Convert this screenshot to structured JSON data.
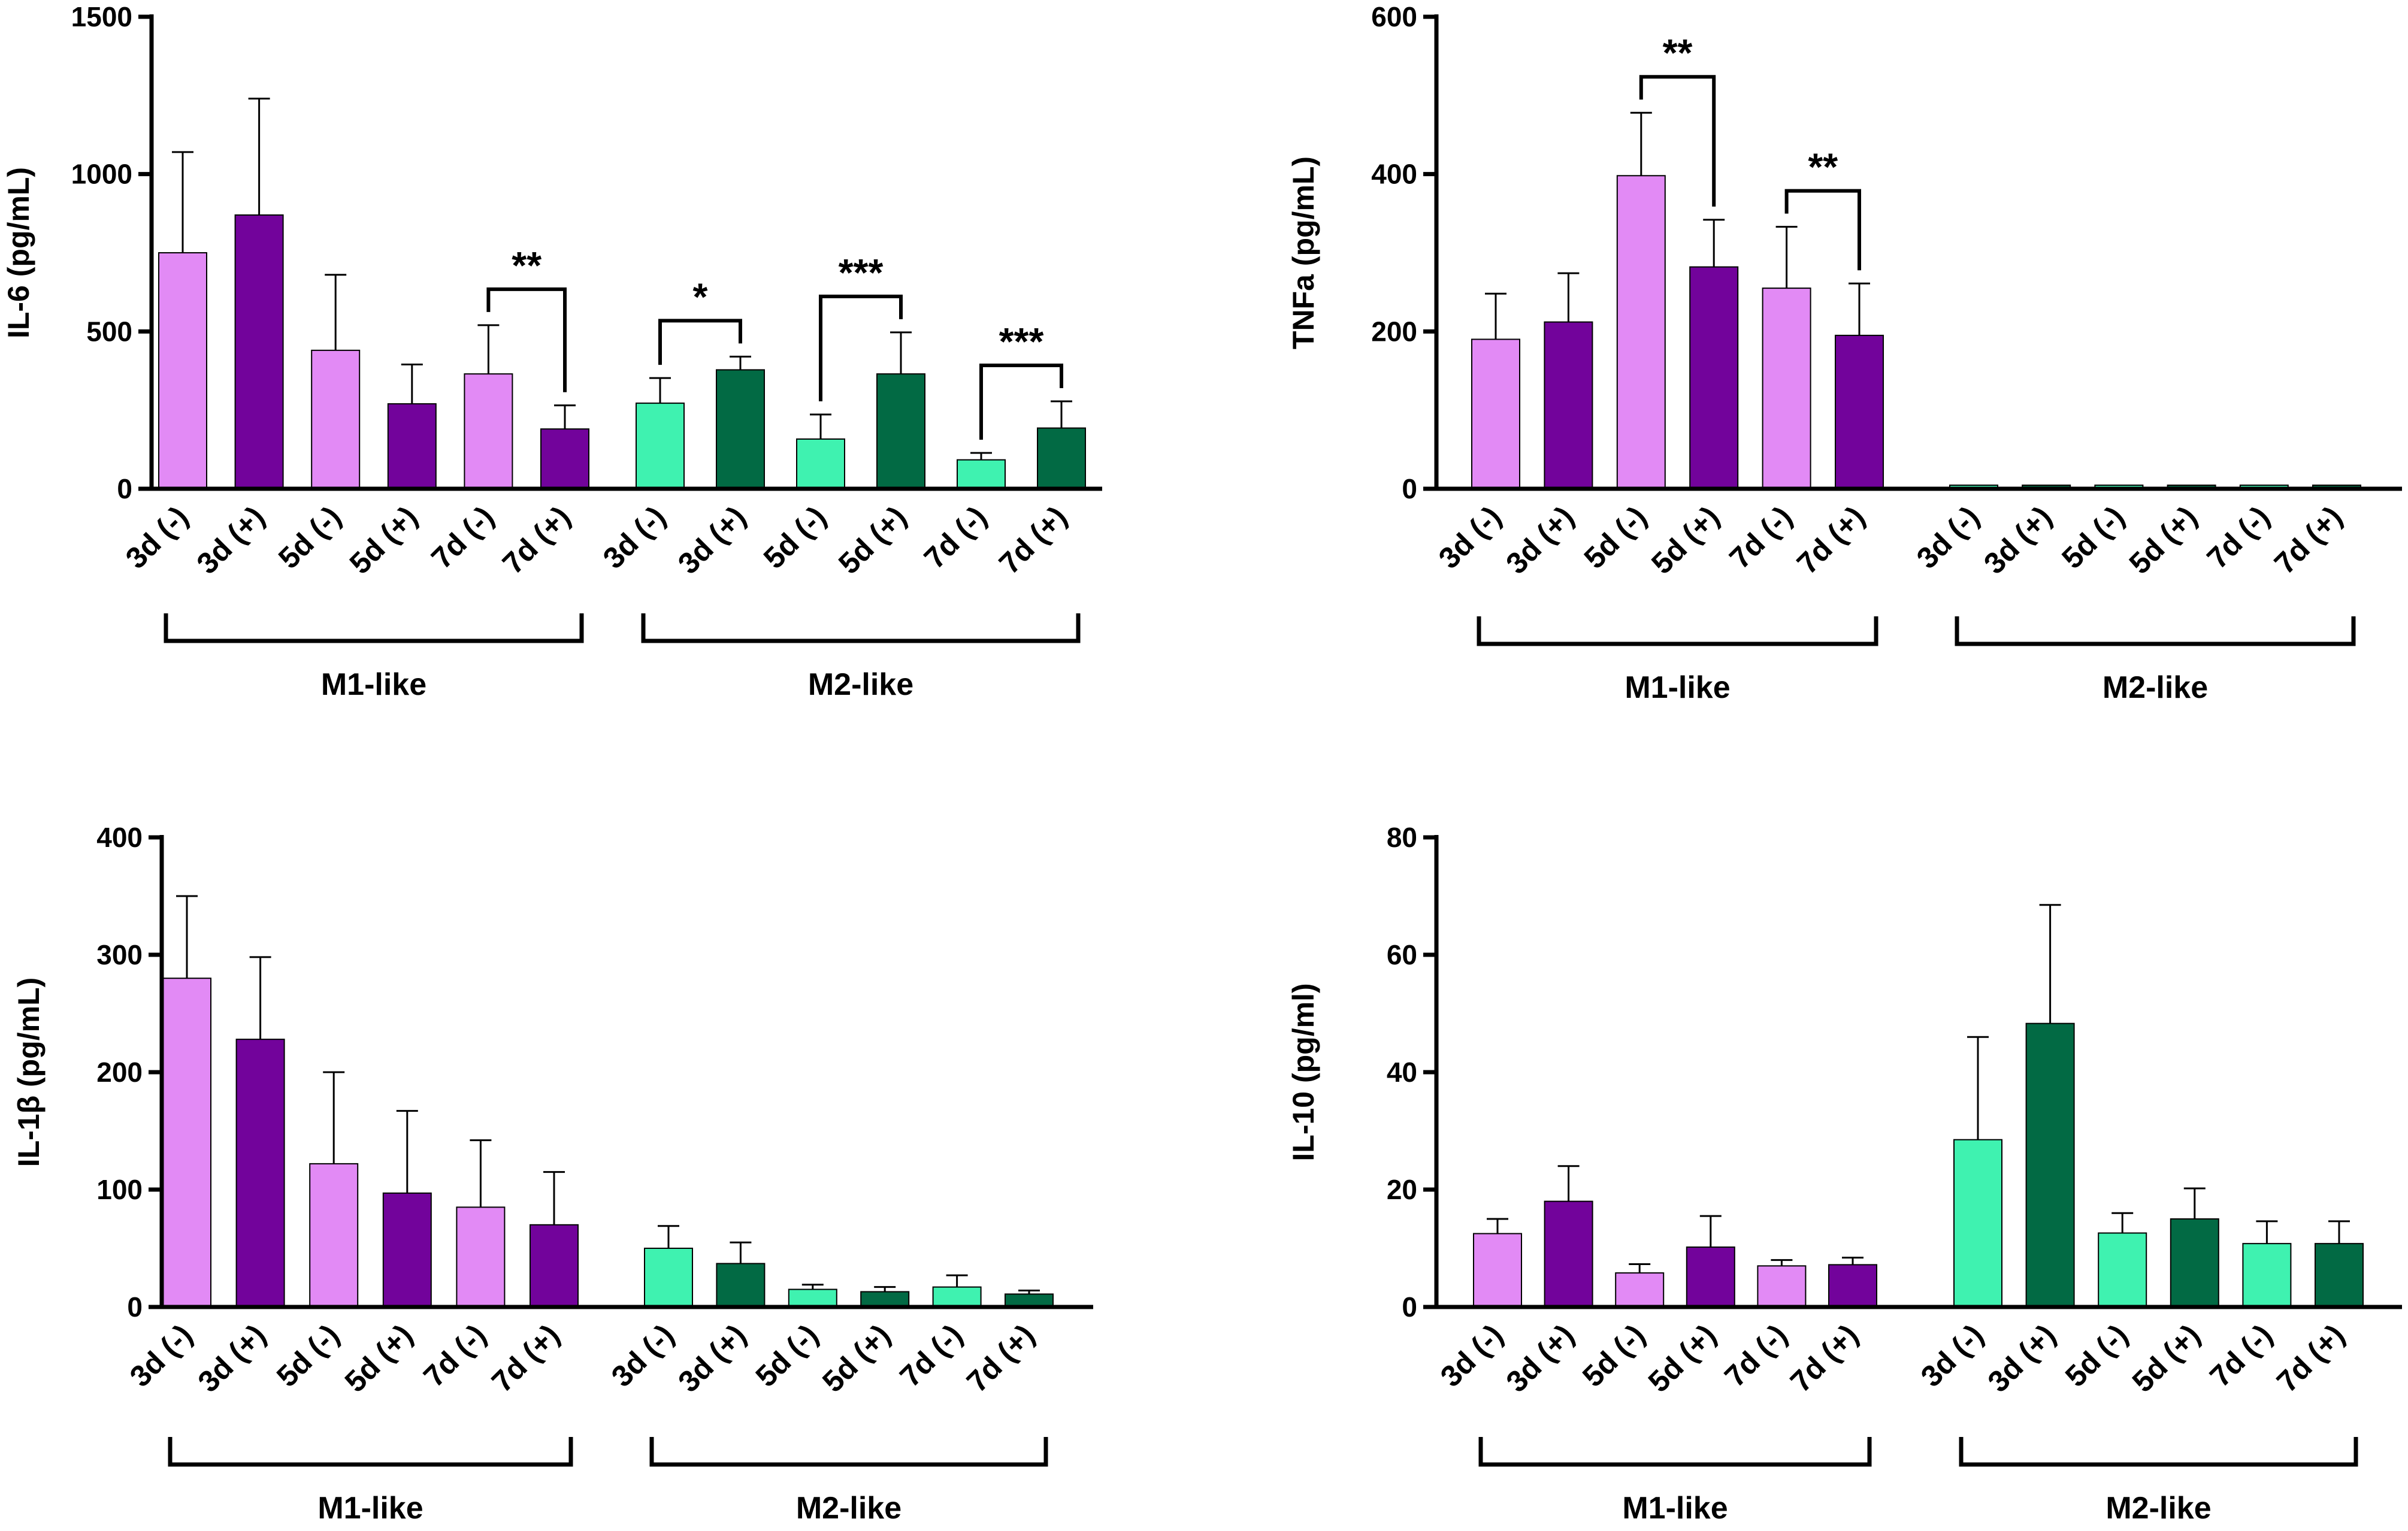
{
  "colors": {
    "m1_light": "#e28af5",
    "m1_dark": "#72039b",
    "m2_light": "#3ff2b0",
    "m2_dark": "#026a44",
    "axis": "#000000"
  },
  "chart_data": [
    {
      "type": "bar",
      "title": "",
      "ylabel": "IL-6 (pg/mL)",
      "ylim": [
        0,
        1500
      ],
      "yticks": [
        0,
        500,
        1000,
        1500
      ],
      "categories": [
        "3d (-)",
        "3d (+)",
        "5d (-)",
        "5d (+)",
        "7d (-)",
        "7d (+)"
      ],
      "groups": [
        {
          "name": "M1-like",
          "values": [
            750,
            870,
            440,
            270,
            365,
            190
          ],
          "errors": [
            320,
            370,
            240,
            125,
            155,
            75
          ],
          "colors": [
            "m1_light",
            "m1_dark",
            "m1_light",
            "m1_dark",
            "m1_light",
            "m1_dark"
          ]
        },
        {
          "name": "M2-like",
          "values": [
            272,
            378,
            158,
            365,
            92,
            193
          ],
          "errors": [
            80,
            42,
            78,
            132,
            22,
            85
          ],
          "colors": [
            "m2_light",
            "m2_dark",
            "m2_light",
            "m2_dark",
            "m2_light",
            "m2_dark"
          ]
        }
      ],
      "significance": [
        {
          "group": 0,
          "from": 4,
          "to": 5,
          "label": "**"
        },
        {
          "group": 1,
          "from": 0,
          "to": 1,
          "label": "*"
        },
        {
          "group": 1,
          "from": 2,
          "to": 3,
          "label": "***"
        },
        {
          "group": 1,
          "from": 4,
          "to": 5,
          "label": "***"
        }
      ]
    },
    {
      "type": "bar",
      "title": "",
      "ylabel": "TNFa (pg/mL)",
      "ylim": [
        0,
        600
      ],
      "yticks": [
        0,
        200,
        400,
        600
      ],
      "categories": [
        "3d (-)",
        "3d (+)",
        "5d (-)",
        "5d (+)",
        "7d (-)",
        "7d (+)"
      ],
      "groups": [
        {
          "name": "M1-like",
          "values": [
            190,
            212,
            398,
            282,
            255,
            195
          ],
          "errors": [
            58,
            62,
            80,
            60,
            78,
            66
          ],
          "colors": [
            "m1_light",
            "m1_dark",
            "m1_light",
            "m1_dark",
            "m1_light",
            "m1_dark"
          ]
        },
        {
          "name": "M2-like",
          "values": [
            3,
            3,
            3,
            3,
            3,
            3
          ],
          "errors": [
            0,
            0,
            0,
            0,
            0,
            0
          ],
          "colors": [
            "m2_light",
            "m2_dark",
            "m2_light",
            "m2_dark",
            "m2_light",
            "m2_dark"
          ]
        }
      ],
      "significance": [
        {
          "group": 0,
          "from": 2,
          "to": 3,
          "label": "**"
        },
        {
          "group": 0,
          "from": 4,
          "to": 5,
          "label": "**"
        }
      ]
    },
    {
      "type": "bar",
      "title": "",
      "ylabel": "IL-1β (pg/mL)",
      "ylim": [
        0,
        400
      ],
      "yticks": [
        0,
        100,
        200,
        300,
        400
      ],
      "categories": [
        "3d (-)",
        "3d (+)",
        "5d (-)",
        "5d (+)",
        "7d (-)",
        "7d (+)"
      ],
      "groups": [
        {
          "name": "M1-like",
          "values": [
            280,
            228,
            122,
            97,
            85,
            70
          ],
          "errors": [
            70,
            70,
            78,
            70,
            57,
            45
          ],
          "colors": [
            "m1_light",
            "m1_dark",
            "m1_light",
            "m1_dark",
            "m1_light",
            "m1_dark"
          ]
        },
        {
          "name": "M2-like",
          "values": [
            50,
            37,
            15,
            13,
            17,
            11
          ],
          "errors": [
            19,
            18,
            4,
            4,
            10,
            3
          ],
          "colors": [
            "m2_light",
            "m2_dark",
            "m2_light",
            "m2_dark",
            "m2_light",
            "m2_dark"
          ]
        }
      ],
      "significance": []
    },
    {
      "type": "bar",
      "title": "",
      "ylabel": "IL-10 (pg/ml)",
      "ylim": [
        0,
        80
      ],
      "yticks": [
        0,
        20,
        40,
        60,
        80
      ],
      "categories": [
        "3d (-)",
        "3d (+)",
        "5d (-)",
        "5d (+)",
        "7d (-)",
        "7d (+)"
      ],
      "groups": [
        {
          "name": "M1-like",
          "values": [
            12.5,
            18,
            5.8,
            10.2,
            7,
            7.2
          ],
          "errors": [
            2.5,
            6,
            1.5,
            5.3,
            1,
            1.2
          ],
          "colors": [
            "m1_light",
            "m1_dark",
            "m1_light",
            "m1_dark",
            "m1_light",
            "m1_dark"
          ]
        },
        {
          "name": "M2-like",
          "values": [
            28.5,
            48.3,
            12.6,
            15,
            10.8,
            10.8
          ],
          "errors": [
            17.5,
            20.2,
            3.4,
            5.2,
            3.8,
            3.8
          ],
          "colors": [
            "m2_light",
            "m2_dark",
            "m2_light",
            "m2_dark",
            "m2_light",
            "m2_dark"
          ]
        }
      ],
      "significance": []
    }
  ]
}
